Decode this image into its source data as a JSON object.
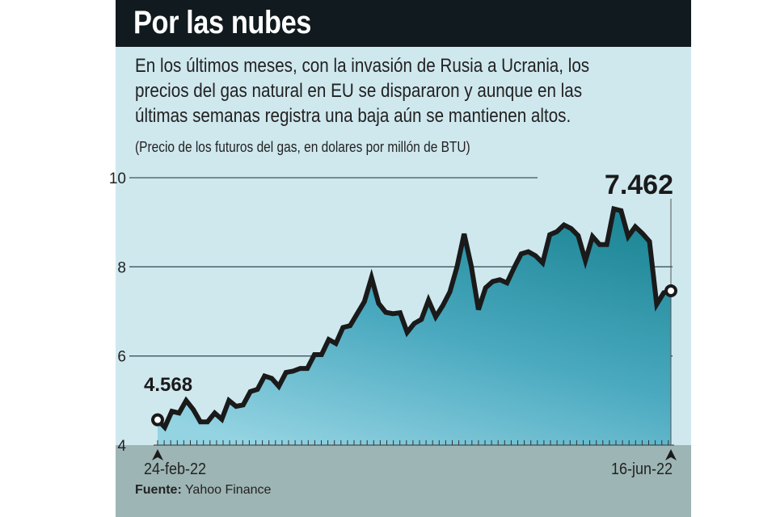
{
  "header": {
    "title": "Por las nubes"
  },
  "description": {
    "lines": [
      "En los últimos meses, con la invasión de Rusia a Ucrania, los",
      "precios del gas natural en EU se dispararon y aunque en las",
      "últimas semanas registra una baja aún se mantienen altos."
    ]
  },
  "source": {
    "label": "Fuente:",
    "name": "Yahoo Finance"
  },
  "colors": {
    "line": "#1a1a1a",
    "fill_top": "#1e8796",
    "fill_bottom": "#93d3e2",
    "grid": "#3a5560",
    "band": "#9db5b4",
    "panel": "#cfe8ee"
  },
  "chart_data": {
    "type": "area",
    "title": "Por las nubes",
    "subtitle": "(Precio de los futuros del gas, en dolares por millón de BTU)",
    "ylim": [
      4,
      10
    ],
    "yticks": [
      10,
      8,
      6,
      4
    ],
    "start_label": "24-feb-22",
    "end_label": "16-jun-22",
    "start_value_label": "4.568",
    "end_value_label": "7.462",
    "values": [
      4.568,
      4.4,
      4.76,
      4.72,
      5.0,
      4.8,
      4.52,
      4.52,
      4.72,
      4.58,
      5.0,
      4.87,
      4.9,
      5.2,
      5.25,
      5.55,
      5.5,
      5.32,
      5.63,
      5.66,
      5.72,
      5.72,
      6.03,
      6.03,
      6.37,
      6.28,
      6.64,
      6.68,
      6.95,
      7.22,
      7.76,
      7.18,
      6.98,
      6.95,
      6.97,
      6.53,
      6.73,
      6.82,
      7.25,
      6.88,
      7.13,
      7.44,
      8.0,
      8.74,
      8.01,
      7.04,
      7.53,
      7.67,
      7.71,
      7.64,
      7.98,
      8.29,
      8.34,
      8.25,
      8.09,
      8.72,
      8.79,
      8.94,
      8.86,
      8.7,
      8.14,
      8.68,
      8.5,
      8.5,
      9.3,
      9.26,
      8.68,
      8.9,
      8.75,
      8.57,
      7.16,
      7.42,
      7.462
    ]
  }
}
